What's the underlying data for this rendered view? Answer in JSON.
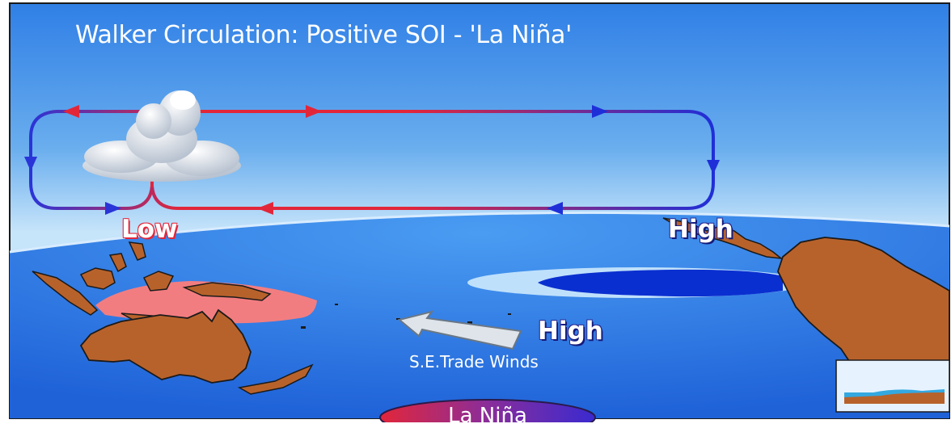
{
  "diagram": {
    "title": "Walker Circulation: Positive SOI - 'La Niña'",
    "labels": {
      "low": "Low",
      "high_east": "High",
      "high_pacific": "High",
      "trade_winds": "S.E.Trade Winds"
    },
    "badge": "La Niña",
    "colors": {
      "rising_air_loop": "#e2263a",
      "sinking_air_loop": "#1f2fd8",
      "warm_water": "#f27d80",
      "cold_tongue": "#0a2fd0",
      "land": "#b8622b",
      "badge": "#7a2a9a"
    }
  }
}
